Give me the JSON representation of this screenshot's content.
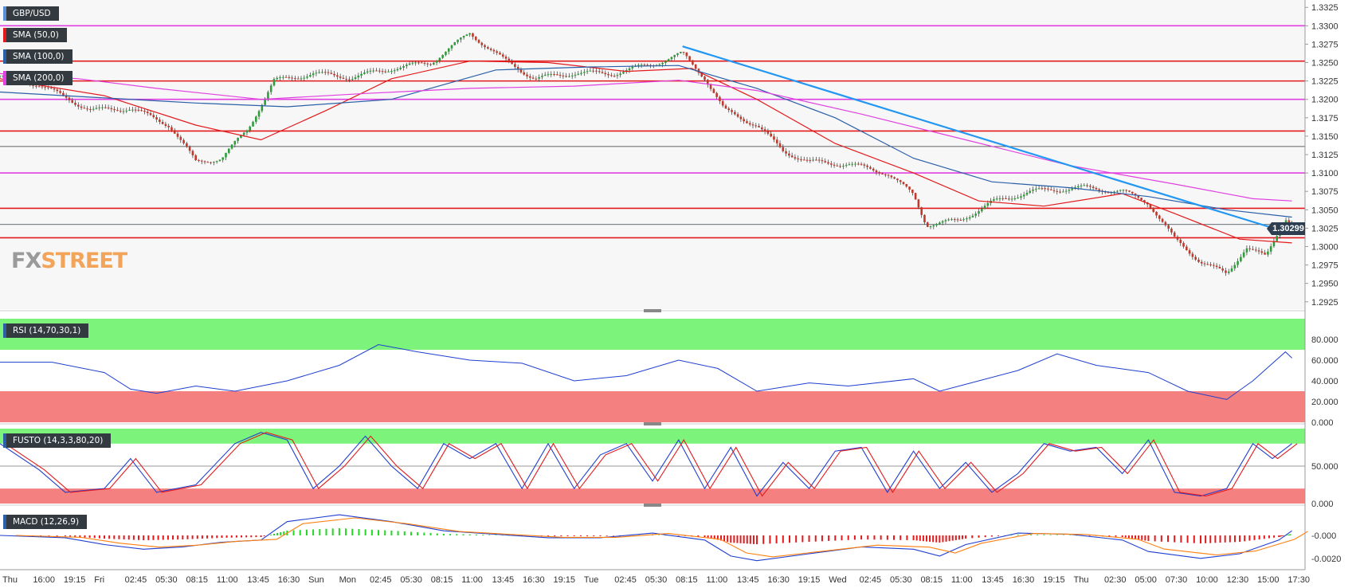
{
  "chart": {
    "pair": "GBP/USD",
    "last_price": "1.30299",
    "watermark": {
      "fx": "FX",
      "street": "STREET"
    },
    "overlays": [
      {
        "label": "SMA (50,0)",
        "color": "#e31a1c"
      },
      {
        "label": "SMA (100,0)",
        "color": "#2b5fa8"
      },
      {
        "label": "SMA (200,0)",
        "color": "#e040e0"
      }
    ],
    "indicators": {
      "rsi": {
        "label": "RSI (14,70,30,1)",
        "color": "#1f3fd0",
        "ticks": [
          "80.000",
          "60.000",
          "40.000",
          "20.000",
          "0.000"
        ]
      },
      "fusto": {
        "label": "FUSTO (14,3,3,80,20)",
        "ticks": [
          "50.000",
          "0.000"
        ]
      },
      "macd": {
        "label": "MACD (12,26,9)",
        "ticks": [
          "-0.000",
          "-0.0020"
        ]
      }
    }
  },
  "chart_data": {
    "type": "line",
    "title": "GBP/USD",
    "ylim": [
      1.2915,
      1.3335
    ],
    "y_ticks": [
      "1.3325",
      "1.3300",
      "1.3275",
      "1.3250",
      "1.3225",
      "1.3200",
      "1.3175",
      "1.3150",
      "1.3125",
      "1.3100",
      "1.3075",
      "1.3050",
      "1.3025",
      "1.3000",
      "1.2975",
      "1.2950",
      "1.2925"
    ],
    "x_ticks": [
      "Thu",
      "16:00",
      "19:15",
      "Fri",
      "02:45",
      "05:30",
      "08:15",
      "11:00",
      "13:45",
      "16:30",
      "Sun",
      "Mon",
      "02:45",
      "05:30",
      "08:15",
      "11:00",
      "13:45",
      "16:30",
      "19:15",
      "Tue",
      "02:45",
      "05:30",
      "08:15",
      "11:00",
      "13:45",
      "16:30",
      "19:15",
      "Wed",
      "02:45",
      "05:30",
      "08:15",
      "11:00",
      "13:45",
      "16:30",
      "19:15",
      "Thu",
      "02:30",
      "05:00",
      "07:30",
      "10:00",
      "12:30",
      "15:00",
      "17:30"
    ],
    "horizontal_levels": [
      {
        "value": 1.33,
        "color": "#e040e0"
      },
      {
        "value": 1.3252,
        "color": "#e31a1c"
      },
      {
        "value": 1.3225,
        "color": "#e31a1c"
      },
      {
        "value": 1.32,
        "color": "#e040e0"
      },
      {
        "value": 1.3157,
        "color": "#e31a1c"
      },
      {
        "value": 1.3136,
        "color": "#333333"
      },
      {
        "value": 1.31,
        "color": "#e040e0"
      },
      {
        "value": 1.3052,
        "color": "#e31a1c"
      },
      {
        "value": 1.3012,
        "color": "#e31a1c"
      }
    ],
    "current_price_value": 1.303,
    "trendline": {
      "color": "#2196f3",
      "points": [
        [
          0.523,
          1.3272
        ],
        [
          0.985,
          1.302
        ]
      ]
    },
    "price_path": [
      [
        0.0,
        1.3232
      ],
      [
        0.03,
        1.322
      ],
      [
        0.07,
        1.3185
      ],
      [
        0.1,
        1.3188
      ],
      [
        0.13,
        1.3165
      ],
      [
        0.15,
        1.3115
      ],
      [
        0.17,
        1.312
      ],
      [
        0.19,
        1.316
      ],
      [
        0.21,
        1.3225
      ],
      [
        0.24,
        1.3235
      ],
      [
        0.27,
        1.323
      ],
      [
        0.3,
        1.3242
      ],
      [
        0.33,
        1.325
      ],
      [
        0.36,
        1.329
      ],
      [
        0.385,
        1.3255
      ],
      [
        0.41,
        1.3228
      ],
      [
        0.44,
        1.3236
      ],
      [
        0.47,
        1.3235
      ],
      [
        0.5,
        1.3248
      ],
      [
        0.523,
        1.3262
      ],
      [
        0.54,
        1.323
      ],
      [
        0.555,
        1.3185
      ],
      [
        0.58,
        1.3165
      ],
      [
        0.6,
        1.313
      ],
      [
        0.62,
        1.3115
      ],
      [
        0.65,
        1.3112
      ],
      [
        0.68,
        1.31
      ],
      [
        0.7,
        1.307
      ],
      [
        0.71,
        1.303
      ],
      [
        0.735,
        1.3035
      ],
      [
        0.76,
        1.306
      ],
      [
        0.79,
        1.3075
      ],
      [
        0.83,
        1.308
      ],
      [
        0.86,
        1.3075
      ],
      [
        0.88,
        1.306
      ],
      [
        0.9,
        1.301
      ],
      [
        0.92,
        1.298
      ],
      [
        0.94,
        1.2962
      ],
      [
        0.955,
        1.3
      ],
      [
        0.97,
        1.2985
      ],
      [
        0.985,
        1.304
      ],
      [
        0.99,
        1.303
      ]
    ],
    "series": [
      {
        "name": "SMA (50,0)",
        "color": "#e31a1c",
        "points": [
          [
            0,
            1.3228
          ],
          [
            0.08,
            1.3205
          ],
          [
            0.15,
            1.3165
          ],
          [
            0.2,
            1.3145
          ],
          [
            0.25,
            1.3185
          ],
          [
            0.3,
            1.3228
          ],
          [
            0.36,
            1.3252
          ],
          [
            0.42,
            1.325
          ],
          [
            0.48,
            1.3238
          ],
          [
            0.53,
            1.3242
          ],
          [
            0.58,
            1.32
          ],
          [
            0.64,
            1.314
          ],
          [
            0.7,
            1.31
          ],
          [
            0.75,
            1.3062
          ],
          [
            0.8,
            1.3055
          ],
          [
            0.86,
            1.3072
          ],
          [
            0.9,
            1.3045
          ],
          [
            0.95,
            1.301
          ],
          [
            0.99,
            1.3005
          ]
        ]
      },
      {
        "name": "SMA (100,0)",
        "color": "#2b5fa8",
        "points": [
          [
            0,
            1.321
          ],
          [
            0.08,
            1.3202
          ],
          [
            0.15,
            1.3195
          ],
          [
            0.22,
            1.319
          ],
          [
            0.3,
            1.32
          ],
          [
            0.38,
            1.324
          ],
          [
            0.45,
            1.3244
          ],
          [
            0.52,
            1.3246
          ],
          [
            0.58,
            1.3215
          ],
          [
            0.64,
            1.3175
          ],
          [
            0.7,
            1.312
          ],
          [
            0.76,
            1.3088
          ],
          [
            0.82,
            1.308
          ],
          [
            0.88,
            1.3068
          ],
          [
            0.94,
            1.305
          ],
          [
            0.99,
            1.304
          ]
        ]
      },
      {
        "name": "SMA (200,0)",
        "color": "#e040e0",
        "points": [
          [
            0,
            1.3235
          ],
          [
            0.06,
            1.3228
          ],
          [
            0.12,
            1.3215
          ],
          [
            0.2,
            1.32
          ],
          [
            0.28,
            1.3208
          ],
          [
            0.36,
            1.3215
          ],
          [
            0.44,
            1.3218
          ],
          [
            0.52,
            1.3226
          ],
          [
            0.58,
            1.3212
          ],
          [
            0.66,
            1.318
          ],
          [
            0.74,
            1.3145
          ],
          [
            0.82,
            1.311
          ],
          [
            0.9,
            1.3085
          ],
          [
            0.96,
            1.3065
          ],
          [
            0.99,
            1.3062
          ]
        ]
      }
    ],
    "rsi": [
      [
        0,
        58
      ],
      [
        0.04,
        58
      ],
      [
        0.08,
        48
      ],
      [
        0.1,
        32
      ],
      [
        0.12,
        28
      ],
      [
        0.15,
        35
      ],
      [
        0.18,
        30
      ],
      [
        0.22,
        40
      ],
      [
        0.26,
        55
      ],
      [
        0.29,
        75
      ],
      [
        0.32,
        68
      ],
      [
        0.36,
        60
      ],
      [
        0.4,
        57
      ],
      [
        0.44,
        40
      ],
      [
        0.48,
        45
      ],
      [
        0.52,
        60
      ],
      [
        0.55,
        52
      ],
      [
        0.58,
        30
      ],
      [
        0.62,
        38
      ],
      [
        0.65,
        35
      ],
      [
        0.7,
        42
      ],
      [
        0.72,
        30
      ],
      [
        0.75,
        40
      ],
      [
        0.78,
        50
      ],
      [
        0.81,
        66
      ],
      [
        0.84,
        55
      ],
      [
        0.88,
        48
      ],
      [
        0.91,
        30
      ],
      [
        0.94,
        22
      ],
      [
        0.96,
        40
      ],
      [
        0.985,
        68
      ],
      [
        0.99,
        62
      ]
    ],
    "fusto": {
      "k_color": "#1f3fd0",
      "d_color": "#e31a1c",
      "points": [
        [
          0,
          80
        ],
        [
          0.03,
          45
        ],
        [
          0.05,
          15
        ],
        [
          0.08,
          20
        ],
        [
          0.1,
          60
        ],
        [
          0.12,
          15
        ],
        [
          0.15,
          25
        ],
        [
          0.18,
          80
        ],
        [
          0.2,
          95
        ],
        [
          0.22,
          85
        ],
        [
          0.24,
          20
        ],
        [
          0.26,
          50
        ],
        [
          0.28,
          90
        ],
        [
          0.3,
          50
        ],
        [
          0.32,
          20
        ],
        [
          0.34,
          80
        ],
        [
          0.36,
          60
        ],
        [
          0.38,
          80
        ],
        [
          0.4,
          20
        ],
        [
          0.42,
          80
        ],
        [
          0.44,
          20
        ],
        [
          0.46,
          65
        ],
        [
          0.48,
          80
        ],
        [
          0.5,
          30
        ],
        [
          0.52,
          85
        ],
        [
          0.54,
          20
        ],
        [
          0.56,
          75
        ],
        [
          0.58,
          10
        ],
        [
          0.6,
          55
        ],
        [
          0.62,
          20
        ],
        [
          0.64,
          70
        ],
        [
          0.66,
          75
        ],
        [
          0.68,
          15
        ],
        [
          0.7,
          70
        ],
        [
          0.72,
          20
        ],
        [
          0.74,
          55
        ],
        [
          0.76,
          15
        ],
        [
          0.78,
          40
        ],
        [
          0.8,
          80
        ],
        [
          0.82,
          70
        ],
        [
          0.84,
          75
        ],
        [
          0.86,
          40
        ],
        [
          0.88,
          85
        ],
        [
          0.9,
          15
        ],
        [
          0.92,
          10
        ],
        [
          0.94,
          20
        ],
        [
          0.96,
          80
        ],
        [
          0.975,
          60
        ],
        [
          0.99,
          80
        ]
      ]
    },
    "macd": {
      "macd_color": "#1f3fd0",
      "signal_color": "#ff7f0e",
      "pos_color": "#22d822",
      "neg_color": "#e31a1c",
      "points": [
        [
          0,
          0
        ],
        [
          0.05,
          -0.0002
        ],
        [
          0.08,
          -0.0008
        ],
        [
          0.11,
          -0.0012
        ],
        [
          0.14,
          -0.001
        ],
        [
          0.17,
          -0.0006
        ],
        [
          0.2,
          -0.0004
        ],
        [
          0.22,
          0.0012
        ],
        [
          0.26,
          0.0018
        ],
        [
          0.3,
          0.0012
        ],
        [
          0.34,
          0.0004
        ],
        [
          0.38,
          0.0001
        ],
        [
          0.42,
          -0.0002
        ],
        [
          0.46,
          -0.0002
        ],
        [
          0.5,
          0.0002
        ],
        [
          0.54,
          -0.0004
        ],
        [
          0.56,
          -0.0018
        ],
        [
          0.58,
          -0.0022
        ],
        [
          0.62,
          -0.0016
        ],
        [
          0.66,
          -0.001
        ],
        [
          0.7,
          -0.0012
        ],
        [
          0.72,
          -0.0018
        ],
        [
          0.74,
          -0.0008
        ],
        [
          0.78,
          0.0002
        ],
        [
          0.82,
          0.0001
        ],
        [
          0.86,
          -0.0004
        ],
        [
          0.88,
          -0.0014
        ],
        [
          0.92,
          -0.002
        ],
        [
          0.95,
          -0.0016
        ],
        [
          0.98,
          -0.0004
        ],
        [
          0.99,
          0.0004
        ]
      ]
    }
  }
}
